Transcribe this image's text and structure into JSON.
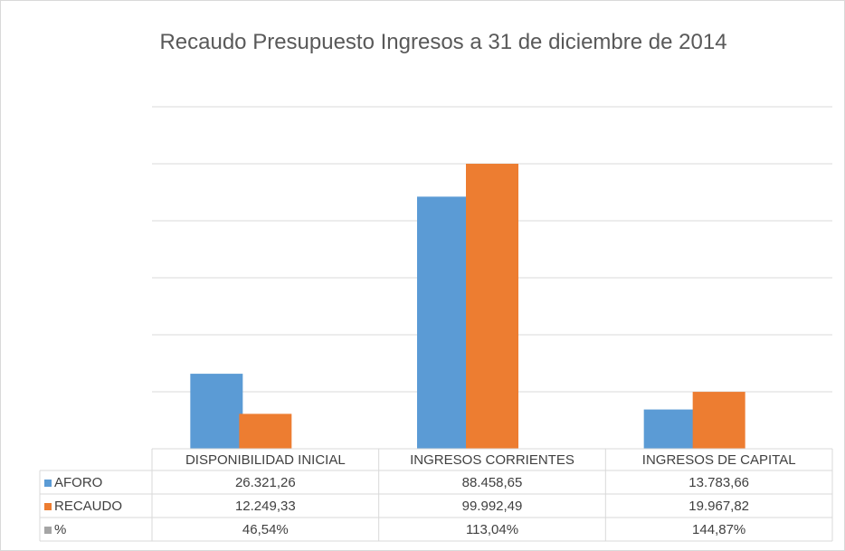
{
  "chart_data": {
    "type": "bar",
    "title": "Recaudo Presupuesto Ingresos a 31 de diciembre de 2014",
    "categories": [
      "DISPONIBILIDAD INICIAL",
      "INGRESOS CORRIENTES",
      "INGRESOS DE CAPITAL"
    ],
    "series": [
      {
        "name": "AFORO",
        "color": "#5b9bd5",
        "values": [
          26321.26,
          88458.65,
          13783.66
        ],
        "value_labels": [
          "26.321,26",
          "88.458,65",
          "13.783,66"
        ]
      },
      {
        "name": "RECAUDO",
        "color": "#ed7d31",
        "values": [
          12249.33,
          99992.49,
          19967.82
        ],
        "value_labels": [
          "12.249,33",
          "99.992,49",
          "19.967,82"
        ]
      },
      {
        "name": "%",
        "color": "#a5a5a5",
        "values": [
          46.54,
          113.04,
          144.87
        ],
        "value_labels": [
          "46,54%",
          "113,04%",
          "144,87%"
        ]
      }
    ],
    "ylim": [
      0,
      120000
    ],
    "yticks": [
      0,
      20000,
      40000,
      60000,
      80000,
      100000,
      120000
    ],
    "grid": true
  }
}
